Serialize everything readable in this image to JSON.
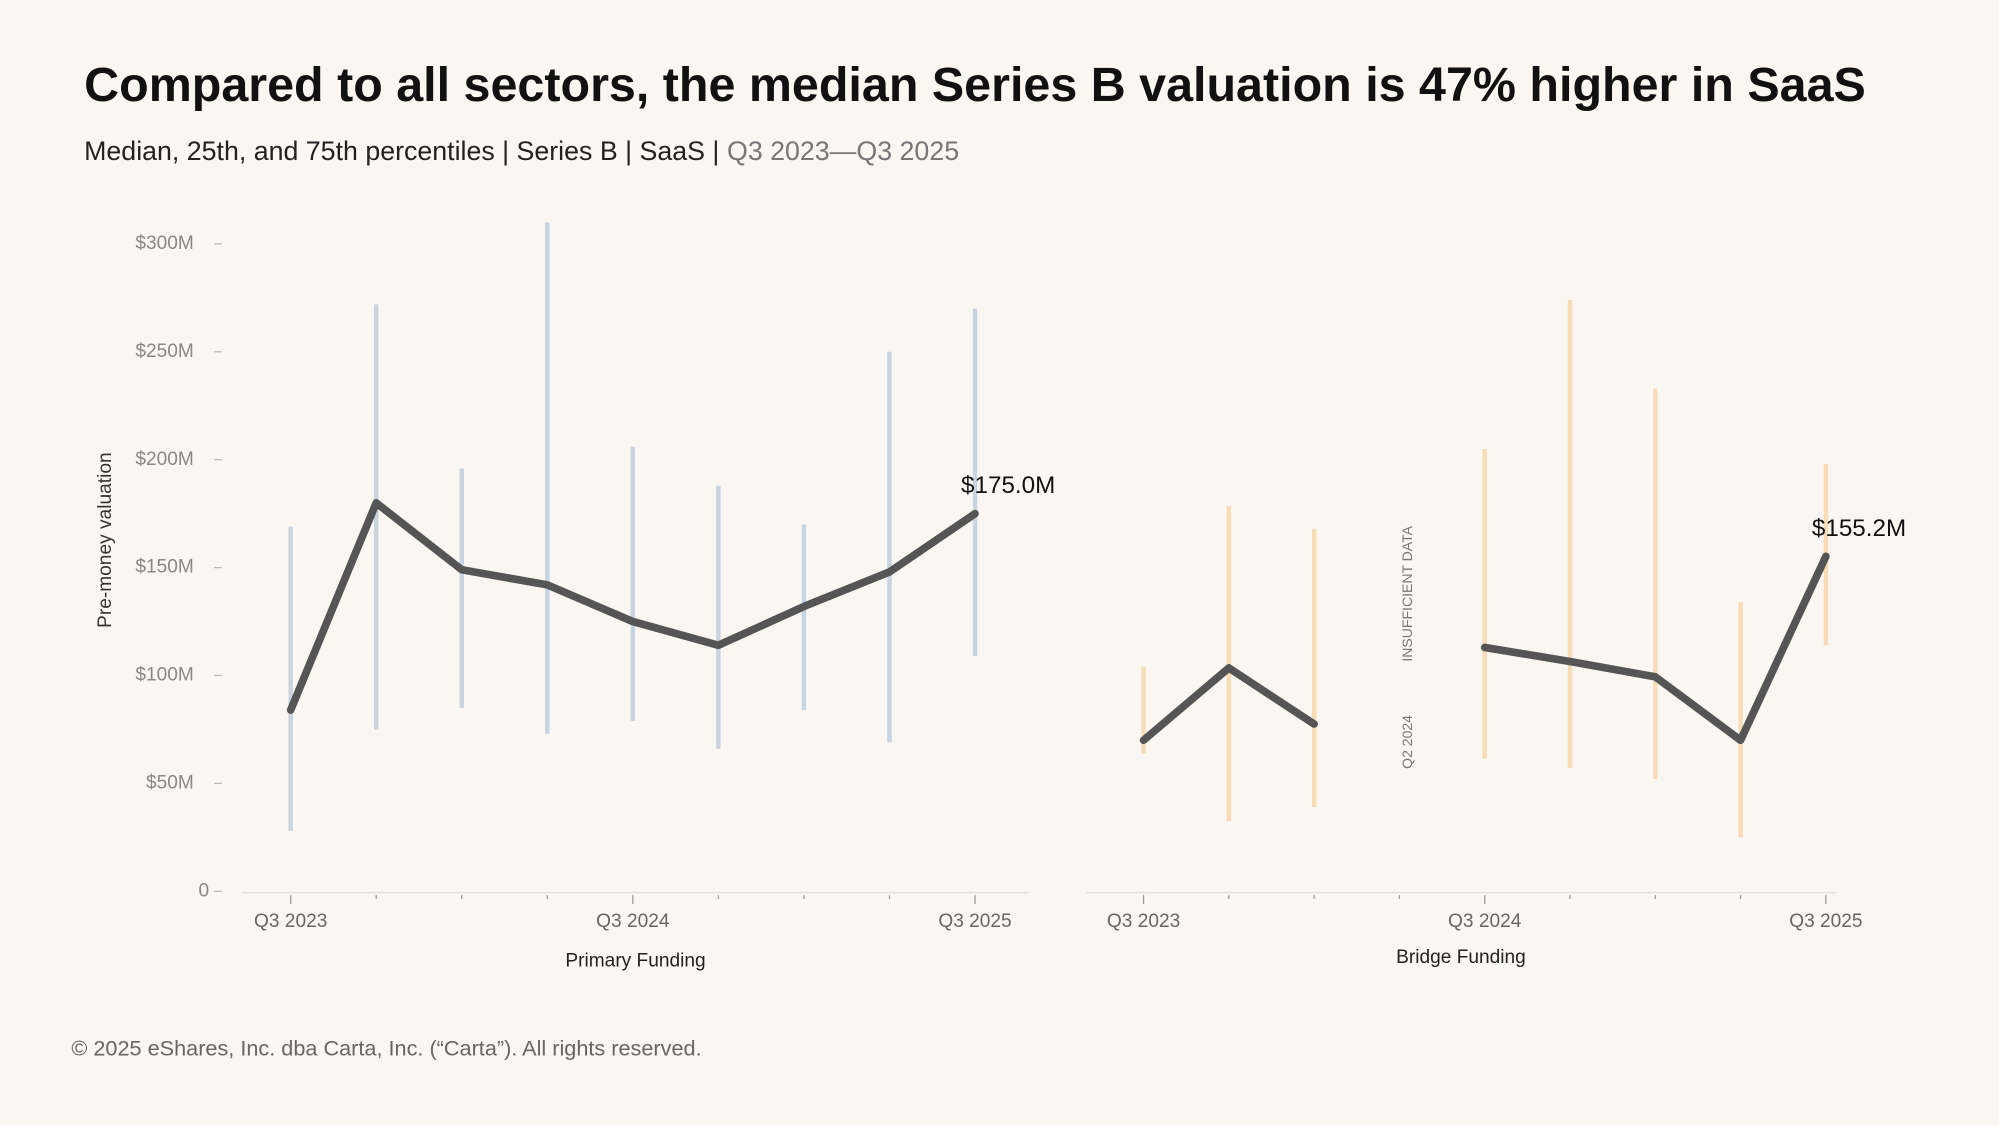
{
  "title": "Compared to all sectors, the median Series B valuation is 47% higher in SaaS",
  "subtitle": "Median, 25th, and 75th percentiles | Series B | SaaS |",
  "subtitle_period": "Q3 2023—Q3 2025",
  "footer": "© 2025 eShares, Inc. dba Carta, Inc. (“Carta”). All rights reserved.",
  "chart_data": [
    {
      "type": "line",
      "xlabel": "Primary Funding",
      "ylabel": "Pre-money valuation",
      "categories": [
        "Q3 2023",
        null,
        null,
        null,
        "Q3 2024",
        null,
        null,
        null,
        "Q3 2025"
      ],
      "values": [
        84,
        180,
        149,
        142,
        125,
        114,
        132,
        148,
        175
      ],
      "value_labels": [
        null,
        null,
        null,
        null,
        null,
        null,
        null,
        null,
        "$175.0M"
      ],
      "color": "#555555",
      "range_low": [
        28,
        75,
        85,
        73,
        79,
        66,
        84,
        69,
        109
      ],
      "range_high": [
        169,
        272,
        196,
        310,
        206,
        188,
        170,
        250,
        270
      ],
      "range_color": "#c8d4e0",
      "ylim": [
        0,
        300
      ],
      "yticks": [
        0,
        {
          "value": 50,
          "label": "$50M"
        },
        {
          "value": 100,
          "label": "$100M"
        },
        {
          "value": 150,
          "label": "$150M"
        },
        {
          "value": 200,
          "label": "$200M"
        },
        {
          "value": 250,
          "label": "$250M"
        },
        {
          "value": 300,
          "label": "$300M"
        }
      ]
    },
    {
      "type": "line",
      "xlabel": "Bridge Funding",
      "categories": [
        "Q3 2023",
        null,
        null,
        null,
        "Q3 2024",
        null,
        null,
        null,
        "Q3 2025"
      ],
      "values": [
        70,
        103.5,
        77.5,
        null,
        113,
        106.5,
        99.4,
        70,
        155.2
      ],
      "value_labels": [
        null,
        null,
        null,
        null,
        null,
        null,
        null,
        null,
        "$155.2M"
      ],
      "color": "#555555",
      "range_low": [
        64,
        32.5,
        39,
        null,
        61.5,
        57,
        52,
        25,
        114
      ],
      "range_high": [
        104,
        178.6,
        168,
        null,
        205,
        274,
        233,
        134,
        198
      ],
      "range_color": "#f8dcb8",
      "ylim": [
        0,
        300
      ],
      "annotations": [
        "INSUFFICIENT DATA",
        "Q2 2024"
      ]
    }
  ]
}
